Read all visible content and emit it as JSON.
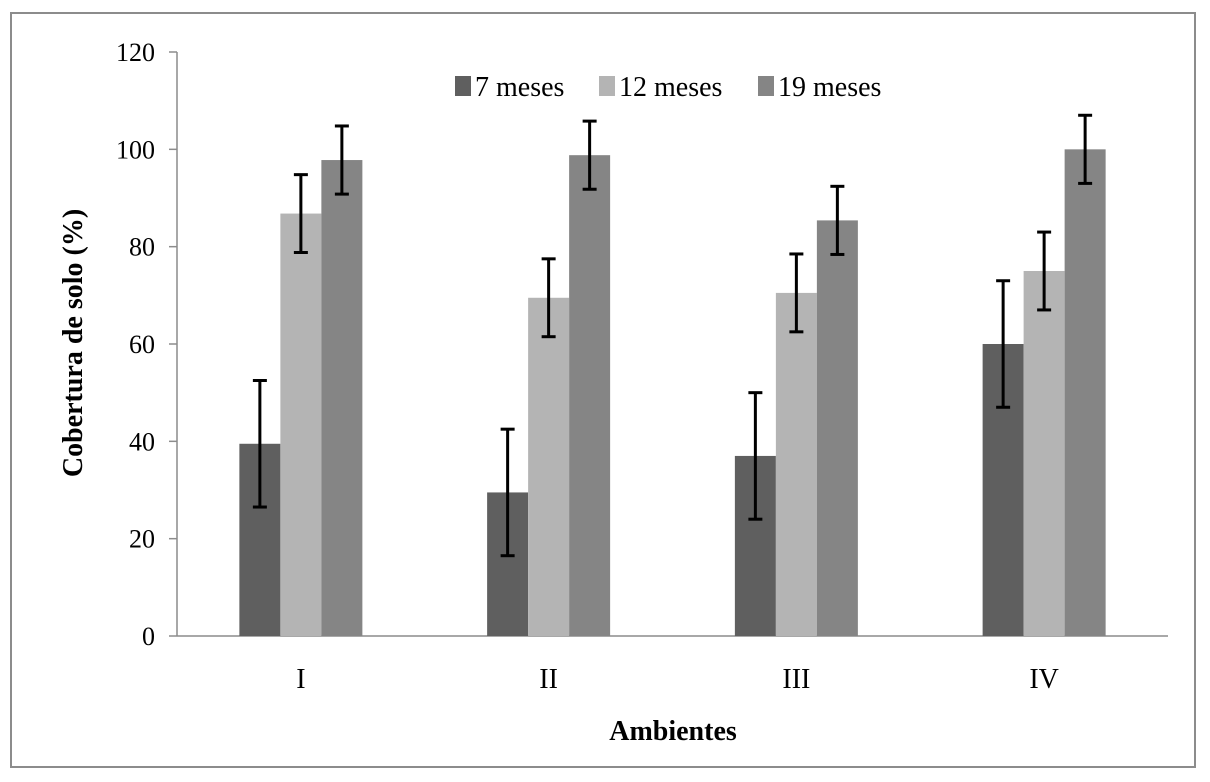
{
  "chart_data": {
    "type": "bar",
    "categories": [
      "I",
      "II",
      "III",
      "IV"
    ],
    "series": [
      {
        "name": "7 meses",
        "color": "#5f5f5f",
        "values": [
          39.5,
          29.5,
          37,
          60
        ],
        "errors": [
          13,
          13,
          13,
          13
        ]
      },
      {
        "name": "12 meses",
        "color": "#b4b4b4",
        "values": [
          86.8,
          69.5,
          70.5,
          75
        ],
        "errors": [
          8,
          8,
          8,
          8
        ]
      },
      {
        "name": "19 meses",
        "color": "#858585",
        "values": [
          97.8,
          98.8,
          85.4,
          100
        ],
        "errors": [
          7,
          7,
          7,
          7
        ]
      }
    ],
    "xlabel": "Ambientes",
    "ylabel": "Cobertura de solo (%)",
    "ylim": [
      0,
      120
    ],
    "yticks": [
      0,
      20,
      40,
      60,
      80,
      100,
      120
    ],
    "grid": false,
    "legend": "top-center"
  }
}
